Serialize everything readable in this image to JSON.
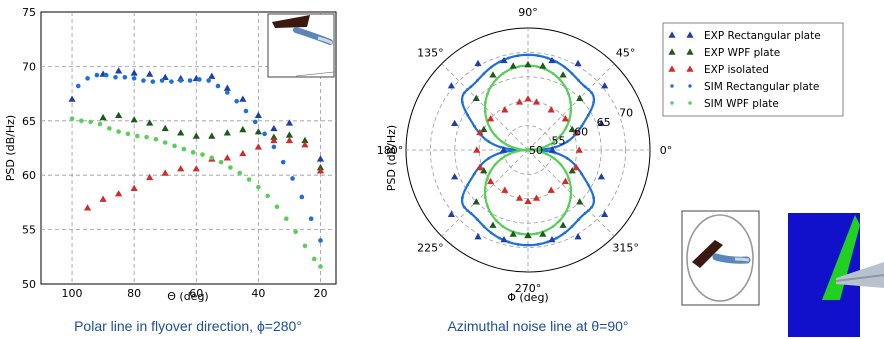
{
  "chart_data": [
    {
      "type": "scatter",
      "title": "",
      "caption": "Polar line in flyover direction, ϕ=280°",
      "xlabel": "Θ (deg)",
      "ylabel": "PSD (dB/Hz)",
      "xlim": [
        110,
        15
      ],
      "ylim": [
        50,
        75
      ],
      "xticks": [
        100,
        80,
        60,
        40,
        20
      ],
      "yticks": [
        50,
        55,
        60,
        65,
        70,
        75
      ],
      "grid": true,
      "series": [
        {
          "name": "EXP Rectangular plate",
          "marker": "triangle",
          "color": "#1f3fa8",
          "x": [
            100,
            90,
            85,
            80,
            75,
            70,
            65,
            60,
            55,
            50,
            45,
            40,
            35,
            30,
            20
          ],
          "y": [
            67.0,
            69.3,
            69.6,
            69.4,
            69.3,
            69.0,
            68.9,
            68.9,
            69.1,
            68.0,
            67.0,
            65.5,
            64.3,
            64.8,
            61.5
          ]
        },
        {
          "name": "EXP WPF plate",
          "marker": "triangle",
          "color": "#1c5a1c",
          "x": [
            90,
            85,
            80,
            75,
            70,
            65,
            60,
            55,
            50,
            45,
            40,
            35,
            30,
            25,
            20
          ],
          "y": [
            65.3,
            65.5,
            65.1,
            64.8,
            64.3,
            63.9,
            63.6,
            63.6,
            63.9,
            64.2,
            64.0,
            63.5,
            63.7,
            63.2,
            60.7
          ]
        },
        {
          "name": "EXP isolated",
          "marker": "triangle",
          "color": "#d22b2b",
          "x": [
            95,
            90,
            85,
            80,
            75,
            70,
            65,
            60,
            55,
            50,
            45,
            40,
            35,
            30,
            25,
            20
          ],
          "y": [
            57.0,
            57.8,
            58.3,
            58.8,
            59.8,
            60.2,
            60.6,
            60.6,
            61.5,
            61.6,
            62.0,
            62.6,
            63.2,
            63.2,
            62.8,
            60.4
          ]
        },
        {
          "name": "SIM Rectangular plate",
          "marker": "dot",
          "color": "#1e6fd9",
          "x": [
            98,
            95,
            92,
            89,
            86,
            83,
            80,
            77,
            74,
            71,
            68,
            65,
            62,
            59,
            56,
            53,
            50,
            47,
            44,
            41,
            38,
            35,
            32,
            29,
            26,
            23,
            20
          ],
          "y": [
            68.2,
            68.9,
            69.2,
            69.2,
            69.0,
            69.0,
            68.9,
            68.7,
            68.6,
            68.7,
            68.6,
            68.7,
            68.7,
            68.8,
            68.7,
            68.2,
            67.6,
            66.8,
            65.9,
            64.9,
            63.8,
            62.6,
            61.2,
            59.7,
            58.0,
            56.0,
            54.0
          ]
        },
        {
          "name": "SIM WPF plate",
          "marker": "dot",
          "color": "#5acd5a",
          "x": [
            100,
            97,
            94,
            91,
            88,
            85,
            82,
            79,
            76,
            73,
            70,
            67,
            64,
            61,
            58,
            55,
            52,
            49,
            46,
            43,
            40,
            37,
            34,
            31,
            28,
            25,
            22,
            20
          ],
          "y": [
            65.2,
            65.0,
            64.9,
            64.7,
            64.3,
            64.0,
            63.8,
            63.6,
            63.5,
            63.3,
            63.0,
            62.7,
            62.4,
            62.1,
            61.9,
            61.6,
            61.2,
            60.7,
            60.2,
            59.6,
            58.9,
            58.1,
            57.1,
            56.0,
            54.8,
            53.5,
            52.3,
            51.6
          ]
        }
      ]
    },
    {
      "type": "scatter",
      "subtype": "polar",
      "title": "",
      "caption": "Azimuthal noise line at θ=90°",
      "xlabel": "Φ (deg)",
      "ylabel": "PSD (dB/Hz)",
      "rlim": [
        50,
        75
      ],
      "rticks": [
        50,
        55,
        60,
        65,
        70,
        75
      ],
      "angle_ticks": [
        "0°",
        "45°",
        "90°",
        "135°",
        "180°",
        "225°",
        "270°",
        "315°"
      ],
      "grid": true,
      "legend_placement": "right",
      "series": [
        {
          "name": "EXP Rectangular plate",
          "marker": "triangle",
          "color": "#1f3fa8",
          "theta": [
            0,
            20,
            40,
            60,
            75,
            90,
            105,
            120,
            140,
            160,
            180,
            200,
            220,
            240,
            255,
            270,
            285,
            300,
            320,
            340
          ],
          "r": [
            55.0,
            66.0,
            70.5,
            70.5,
            69.0,
            67.5,
            69.0,
            70.5,
            70.5,
            66.0,
            55.0,
            66.0,
            70.5,
            70.5,
            69.0,
            67.5,
            69.0,
            70.5,
            70.5,
            66.0
          ]
        },
        {
          "name": "EXP WPF plate",
          "marker": "triangle",
          "color": "#1c5a1c",
          "theta": [
            25,
            45,
            65,
            80,
            90,
            100,
            115,
            135,
            155,
            205,
            225,
            245,
            260,
            270,
            280,
            295,
            315,
            335
          ],
          "r": [
            60.0,
            65.0,
            67.0,
            67.5,
            67.5,
            67.5,
            67.0,
            65.0,
            60.0,
            60.0,
            65.0,
            67.0,
            67.5,
            67.5,
            67.5,
            67.0,
            65.0,
            60.0
          ]
        },
        {
          "name": "EXP isolated",
          "marker": "triangle",
          "color": "#d22b2b",
          "theta": [
            0,
            20,
            40,
            60,
            80,
            90,
            100,
            120,
            140,
            160,
            180,
            200,
            220,
            240,
            260,
            270,
            280,
            300,
            320,
            340
          ],
          "r": [
            60.5,
            60.5,
            60.0,
            59.5,
            60.0,
            60.5,
            60.0,
            59.5,
            60.0,
            60.5,
            60.5,
            60.5,
            60.0,
            59.5,
            60.0,
            60.5,
            60.0,
            59.5,
            60.0,
            60.5
          ]
        },
        {
          "name": "SIM Rectangular plate",
          "marker": "dot-line",
          "color": "#1e6fd9",
          "model": "rect"
        },
        {
          "name": "SIM WPF plate",
          "marker": "dot-line",
          "color": "#5acd5a",
          "model": "wpf"
        }
      ],
      "ring_labels": [
        "50",
        "55",
        "60",
        "65",
        "70",
        "75"
      ]
    }
  ]
}
